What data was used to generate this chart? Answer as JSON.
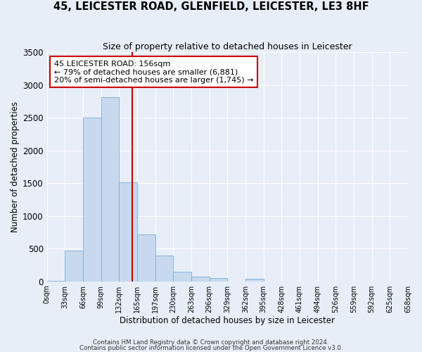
{
  "title": "45, LEICESTER ROAD, GLENFIELD, LEICESTER, LE3 8HF",
  "subtitle": "Size of property relative to detached houses in Leicester",
  "xlabel": "Distribution of detached houses by size in Leicester",
  "ylabel": "Number of detached properties",
  "bar_color": "#c8d9ee",
  "bar_edge_color": "#7aadd4",
  "background_color": "#e8eef8",
  "grid_color": "#ffffff",
  "bin_edges": [
    0,
    33,
    66,
    99,
    132,
    165,
    198,
    231,
    264,
    297,
    330,
    363,
    396,
    429,
    462,
    495,
    528,
    561,
    594,
    627,
    660
  ],
  "bin_labels": [
    "0sqm",
    "33sqm",
    "66sqm",
    "99sqm",
    "132sqm",
    "165sqm",
    "197sqm",
    "230sqm",
    "263sqm",
    "296sqm",
    "329sqm",
    "362sqm",
    "395sqm",
    "428sqm",
    "461sqm",
    "494sqm",
    "526sqm",
    "559sqm",
    "592sqm",
    "625sqm",
    "658sqm"
  ],
  "counts": [
    5,
    470,
    2500,
    2810,
    1510,
    720,
    400,
    150,
    70,
    50,
    0,
    45,
    0,
    0,
    0,
    0,
    0,
    0,
    0,
    0
  ],
  "vline_x": 156,
  "vline_color": "#cc0000",
  "annotation_title": "45 LEICESTER ROAD: 156sqm",
  "annotation_line1": "← 79% of detached houses are smaller (6,881)",
  "annotation_line2": "20% of semi-detached houses are larger (1,745) →",
  "annotation_box_color": "#ffffff",
  "annotation_box_edge": "#cc0000",
  "ylim": [
    0,
    3500
  ],
  "yticks": [
    0,
    500,
    1000,
    1500,
    2000,
    2500,
    3000,
    3500
  ],
  "footnote1": "Contains HM Land Registry data © Crown copyright and database right 2024.",
  "footnote2": "Contains public sector information licensed under the Open Government Licence v3.0."
}
